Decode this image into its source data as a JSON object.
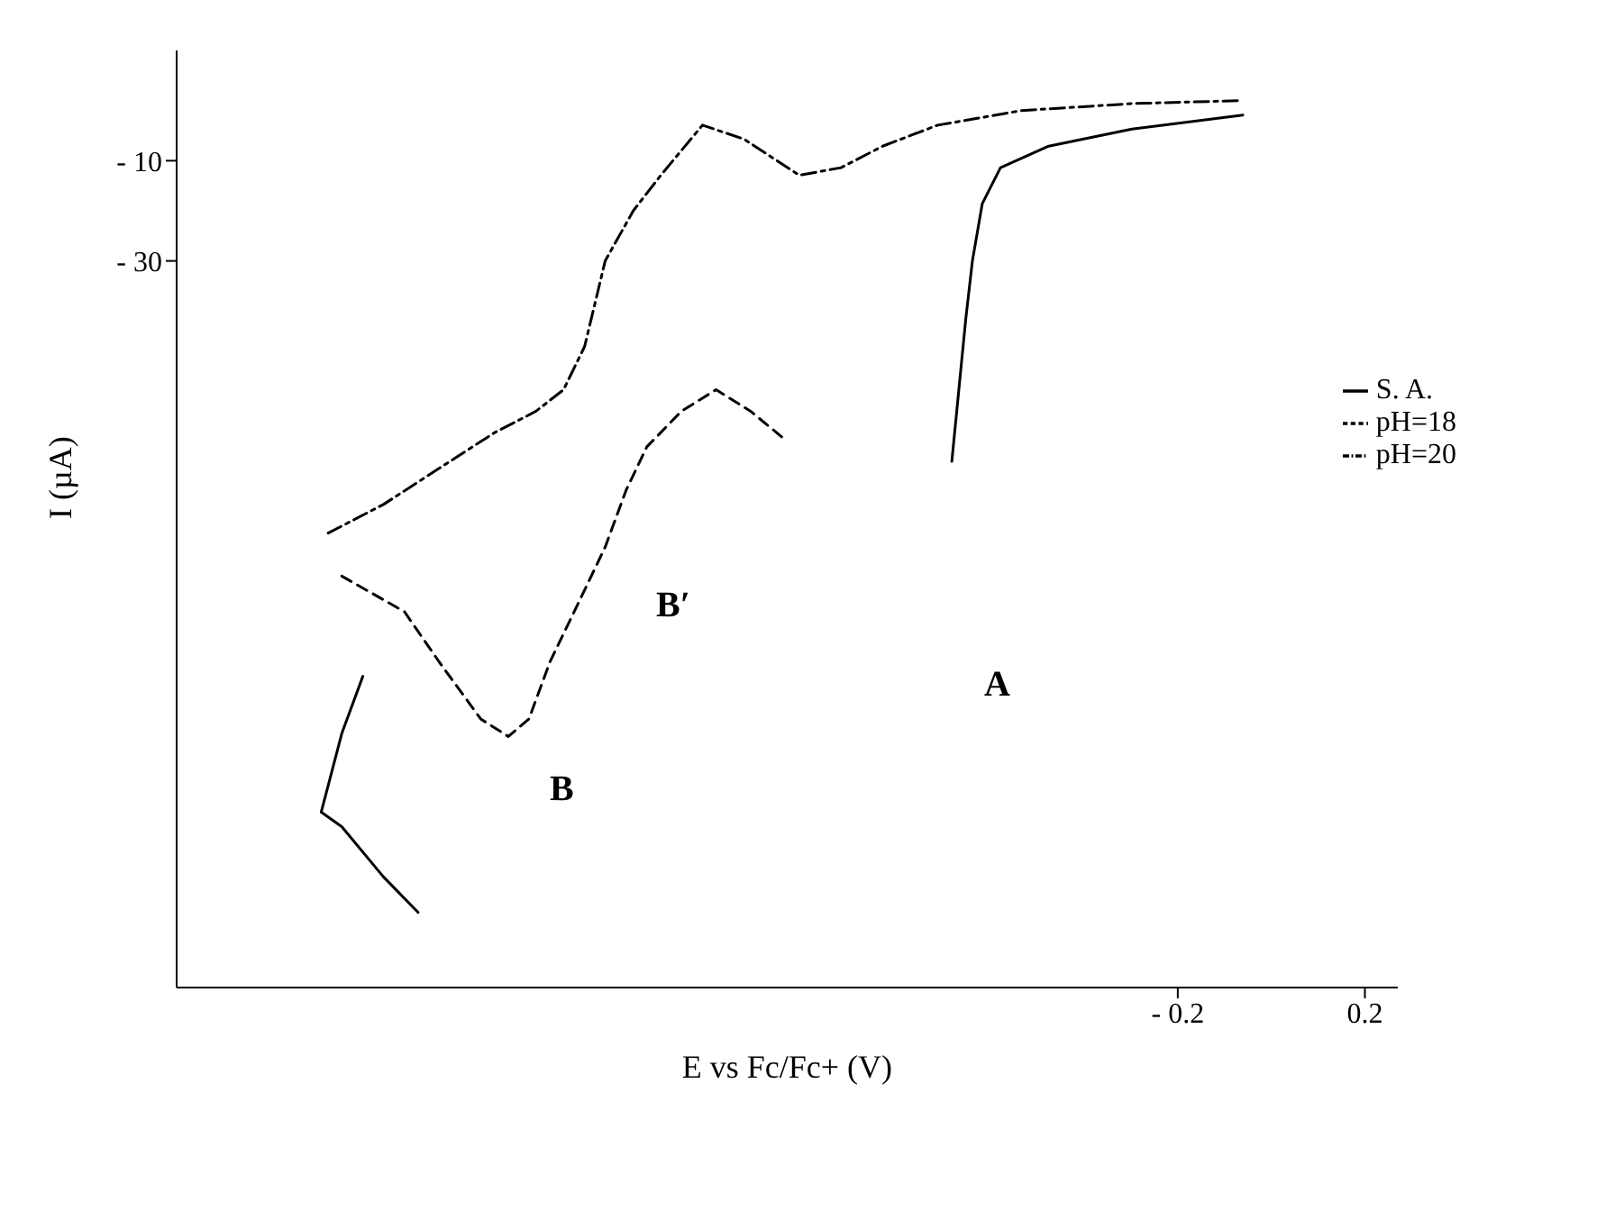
{
  "chart_data": {
    "type": "line",
    "xlabel": "E vs Fc/Fc+ (V)",
    "ylabel": "I (µA)",
    "xlim": [
      -2.34,
      0.27
    ],
    "ylim": [
      -175,
      12
    ],
    "xticks": [
      {
        "value": -0.2,
        "label": "- 0.2"
      },
      0.2
    ],
    "yticks": [
      {
        "value": -10,
        "label": "- 10"
      },
      {
        "value": -30,
        "label": "- 30"
      }
    ],
    "grid": false,
    "legend": "right",
    "marker": "none",
    "series": [
      {
        "name": "S. A.",
        "color": "#000000",
        "line_style": "solid",
        "x": [
          -0.061,
          -0.298,
          -0.476,
          -0.579,
          -0.618,
          -0.639,
          -0.653,
          -0.668,
          -0.683,
          null,
          -1.942,
          -1.987,
          -2.031,
          -1.987,
          -1.898,
          -1.824
        ],
        "values": [
          -0.9,
          -3.7,
          -7.1,
          -11.4,
          -18.6,
          -30,
          -41.4,
          -55.7,
          -70,
          null,
          -112.9,
          -124.3,
          -140,
          -142.9,
          -152.9,
          -160
        ]
      },
      {
        "name": "pH=18",
        "color": "#000000",
        "line_style": "dashed",
        "x": [
          -1.987,
          -1.853,
          -1.779,
          -1.69,
          -1.631,
          -1.587,
          -1.542,
          -1.483,
          -1.424,
          -1.379,
          -1.335,
          -1.261,
          -1.187,
          -1.113,
          -1.039
        ],
        "values": [
          -92.9,
          -100,
          -110,
          -121.4,
          -124.9,
          -121.4,
          -110,
          -98.6,
          -87.1,
          -75.7,
          -67.1,
          -60,
          -55.7,
          -60,
          -65.7
        ]
      },
      {
        "name": "pH=20",
        "color": "#000000",
        "line_style": "dashdot",
        "x": [
          -2.016,
          -1.898,
          -1.779,
          -1.661,
          -1.572,
          -1.513,
          -1.468,
          -1.424,
          -1.364,
          -1.305,
          -1.216,
          -1.127,
          -1.009,
          -0.92,
          -0.831,
          -0.713,
          -0.535,
          -0.298,
          -0.061
        ],
        "values": [
          -84.3,
          -78.6,
          -71.4,
          -64.3,
          -60,
          -55.7,
          -47.1,
          -30,
          -20,
          -12.9,
          -2.9,
          -5.7,
          -12.9,
          -11.4,
          -7.1,
          -2.9,
          0,
          1.4,
          2
        ]
      }
    ],
    "annotations": [
      "A",
      "B",
      "B′"
    ]
  }
}
